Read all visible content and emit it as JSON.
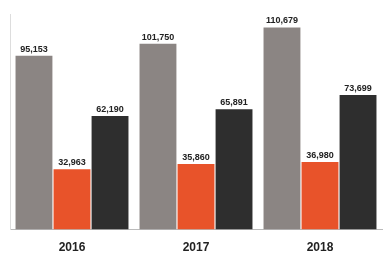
{
  "chart_data": {
    "type": "bar",
    "categories": [
      "2016",
      "2017",
      "2018"
    ],
    "series": [
      {
        "color": "#8b8583",
        "values": [
          95153,
          101750,
          110679
        ],
        "value_labels": [
          "95,153",
          "101,750",
          "110,679"
        ]
      },
      {
        "color": "#e8532a",
        "values": [
          32963,
          35860,
          36980
        ],
        "value_labels": [
          "32,963",
          "35,860",
          "36,980"
        ]
      },
      {
        "color": "#2e2e2e",
        "values": [
          62190,
          65891,
          73699
        ],
        "value_labels": [
          "62,190",
          "65,891",
          "73,699"
        ]
      }
    ],
    "ylim": [
      0,
      118000
    ],
    "grid": false,
    "data_labels": true,
    "tick_labels": "x"
  }
}
